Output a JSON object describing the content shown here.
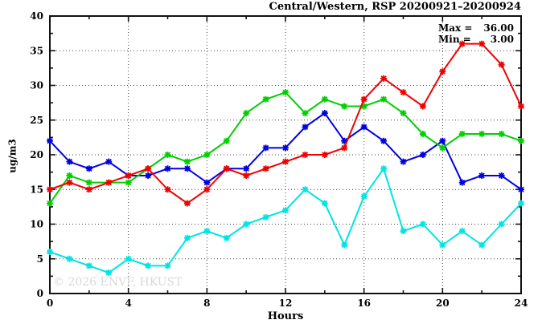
{
  "title": "Central/Western, RSP 20200921–20200924",
  "annotation": {
    "max_label": "Max =",
    "max_value": "36.00",
    "min_label": "Min =",
    "min_value": "3.00"
  },
  "watermark": "© 2026 ENVF, HKUST",
  "chart_data": {
    "type": "line",
    "title": "Central/Western, RSP 20200921–20200924",
    "xlabel": "Hours",
    "ylabel": "ug/m3",
    "xlim": [
      0,
      24
    ],
    "ylim": [
      0,
      40
    ],
    "x_major_ticks": [
      0,
      4,
      8,
      12,
      16,
      20,
      24
    ],
    "x_minor_ticks": [
      2,
      6,
      10,
      14,
      18,
      22
    ],
    "y_major_ticks": [
      0,
      5,
      10,
      15,
      20,
      25,
      30,
      35,
      40
    ],
    "y_minor_ticks": [
      2.5,
      7.5,
      12.5,
      17.5,
      22.5,
      27.5,
      32.5,
      37.5
    ],
    "grid": "dotted",
    "legend": "none",
    "marker": "asterisk",
    "annotations": {
      "max": 36.0,
      "min": 3.0
    },
    "x": [
      0,
      1,
      2,
      3,
      4,
      5,
      6,
      7,
      8,
      9,
      10,
      11,
      12,
      13,
      14,
      15,
      16,
      17,
      18,
      19,
      20,
      21,
      22,
      23,
      24
    ],
    "series": [
      {
        "name": "series-cyan",
        "color": "#00e4e4",
        "values": [
          6,
          5,
          4,
          3,
          5,
          4,
          4,
          8,
          9,
          8,
          10,
          11,
          12,
          15,
          13,
          7,
          14,
          18,
          9,
          10,
          7,
          9,
          7,
          10,
          13
        ]
      },
      {
        "name": "series-blue",
        "color": "#0000e0",
        "values": [
          22,
          19,
          18,
          19,
          17,
          17,
          18,
          18,
          16,
          18,
          18,
          21,
          21,
          24,
          26,
          22,
          24,
          22,
          19,
          20,
          22,
          16,
          17,
          17,
          15
        ]
      },
      {
        "name": "series-green",
        "color": "#00cf00",
        "values": [
          13,
          17,
          16,
          16,
          16,
          18,
          20,
          19,
          20,
          22,
          26,
          28,
          29,
          26,
          28,
          27,
          27,
          28,
          26,
          23,
          21,
          23,
          23,
          23,
          22
        ]
      },
      {
        "name": "series-red",
        "color": "#f10000",
        "values": [
          15,
          16,
          15,
          16,
          17,
          18,
          15,
          13,
          15,
          18,
          17,
          18,
          19,
          20,
          20,
          21,
          28,
          31,
          29,
          27,
          32,
          36,
          36,
          33,
          27
        ]
      }
    ],
    "axis_color": "#111111",
    "grid_color": "#444444"
  }
}
